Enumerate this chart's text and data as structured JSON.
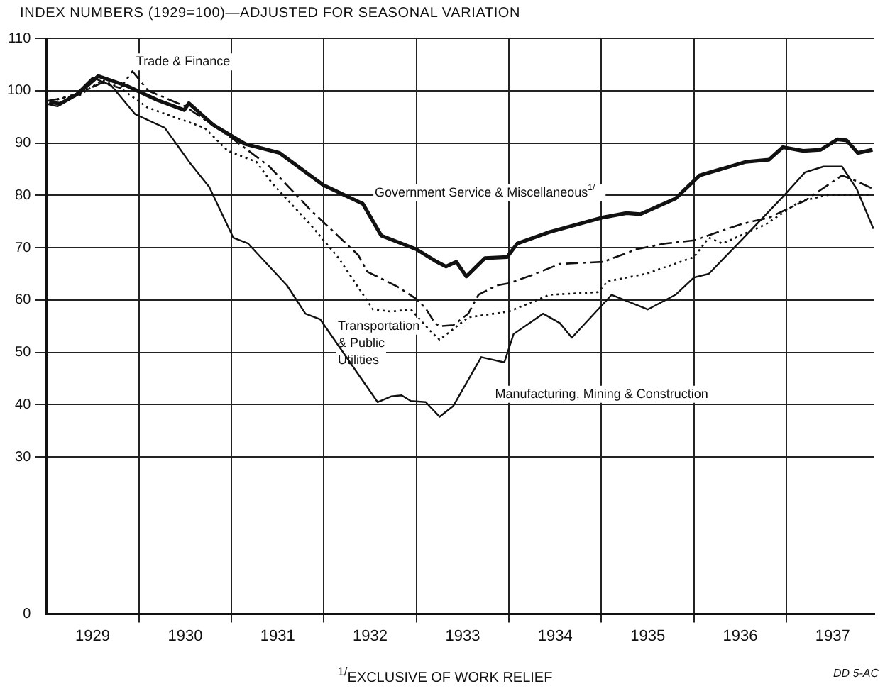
{
  "chart_data": {
    "type": "line",
    "title": "INDEX NUMBERS (1929=100)—ADJUSTED FOR SEASONAL VARIATION",
    "annotations": [
      "$^{1/}$EXCLUSIVE OF WORK RELIEF",
      "DD 5-AC"
    ],
    "xlim": [
      1929,
      1937.95
    ],
    "xticks": [
      {
        "value": 1929.5,
        "label": "1929"
      },
      {
        "value": 1930,
        "label": null
      },
      {
        "value": 1930.5,
        "label": "1930"
      },
      {
        "value": 1931,
        "label": null
      },
      {
        "value": 1931.5,
        "label": "1931"
      },
      {
        "value": 1932,
        "label": null
      },
      {
        "value": 1932.5,
        "label": "1932"
      },
      {
        "value": 1933,
        "label": null
      },
      {
        "value": 1933.5,
        "label": "1933"
      },
      {
        "value": 1934,
        "label": null
      },
      {
        "value": 1934.5,
        "label": "1934"
      },
      {
        "value": 1935,
        "label": null
      },
      {
        "value": 1935.5,
        "label": "1935"
      },
      {
        "value": 1936,
        "label": null
      },
      {
        "value": 1936.5,
        "label": "1936"
      },
      {
        "value": 1937,
        "label": null
      },
      {
        "value": 1937.5,
        "label": "1937"
      }
    ],
    "ylim": [
      0,
      110
    ],
    "yticks": [
      0,
      30,
      40,
      50,
      60,
      70,
      80,
      90,
      100,
      110
    ],
    "grid": true,
    "legend": false,
    "marker": "none",
    "series": [
      {
        "name": "Government Service & Miscellaneous$^{1/}$",
        "color": "#111111",
        "line_style": "solid",
        "x": [
          1929.03,
          1929.15,
          1929.35,
          1929.56,
          1929.87,
          1930.2,
          1930.49,
          1930.54,
          1930.8,
          1931.15,
          1931.52,
          1931.99,
          1932.42,
          1932.62,
          1933.0,
          1933.2,
          1933.32,
          1933.43,
          1933.54,
          1933.74,
          1933.98,
          1934.09,
          1934.44,
          1935.02,
          1935.27,
          1935.42,
          1935.8,
          1936.06,
          1936.56,
          1936.81,
          1936.96,
          1937.18,
          1937.37,
          1937.55,
          1937.65,
          1937.77,
          1937.93
        ],
        "values": [
          97.8,
          97.5,
          99.5,
          102.8,
          100.9,
          98.2,
          96.3,
          97.6,
          93.5,
          89.8,
          88.1,
          82.0,
          78.4,
          72.3,
          69.7,
          67.5,
          66.4,
          67.3,
          64.5,
          68.0,
          68.2,
          70.8,
          73.0,
          75.8,
          76.6,
          76.4,
          79.4,
          83.8,
          86.4,
          86.8,
          89.2,
          88.5,
          88.7,
          90.7,
          90.5,
          88.1,
          88.7
        ]
      },
      {
        "name": "Trade & Finance",
        "color": "#111111",
        "line_style": "dashed",
        "x": [
          1929.0,
          1929.15,
          1929.35,
          1929.6,
          1929.8,
          1929.93,
          1930.1,
          1930.5,
          1931.0,
          1931.41,
          1931.85,
          1932.37,
          1932.47,
          1932.79,
          1933.0,
          1933.1,
          1933.2,
          1933.25,
          1933.4,
          1933.56,
          1933.67,
          1933.87,
          1934.0,
          1934.24,
          1934.55,
          1935.02,
          1935.38,
          1935.69,
          1936.0,
          1936.51,
          1936.82,
          1937.2,
          1937.6,
          1937.76,
          1937.94
        ],
        "values": [
          98.0,
          98.5,
          99.5,
          101.5,
          100.5,
          103.7,
          100.0,
          97.0,
          91.0,
          85.5,
          77.3,
          68.6,
          65.4,
          62.6,
          60.2,
          58.4,
          55.6,
          55.0,
          55.2,
          57.4,
          61.0,
          62.8,
          63.2,
          64.7,
          66.9,
          67.3,
          69.7,
          70.8,
          71.4,
          74.5,
          75.8,
          79.0,
          83.8,
          82.7,
          81.2
        ]
      },
      {
        "name": "Transportation & Public Utilities",
        "color": "#111111",
        "line_style": "dotted",
        "x": [
          1929.0,
          1929.15,
          1929.35,
          1929.6,
          1929.8,
          1930.09,
          1930.71,
          1930.96,
          1931.27,
          1931.44,
          1931.85,
          1932.16,
          1932.53,
          1932.73,
          1932.94,
          1933.15,
          1933.25,
          1933.56,
          1934.0,
          1934.44,
          1934.96,
          1935.07,
          1935.48,
          1936.0,
          1936.16,
          1936.31,
          1936.78,
          1937.14,
          1937.45,
          1937.92
        ],
        "values": [
          97.5,
          98.5,
          99.0,
          102.0,
          100.5,
          96.8,
          92.9,
          88.5,
          86.4,
          82.3,
          74.5,
          68.0,
          58.2,
          57.8,
          58.2,
          54.1,
          52.4,
          56.7,
          57.8,
          61.0,
          61.5,
          63.6,
          65.0,
          68.2,
          71.9,
          70.8,
          74.5,
          78.8,
          80.1,
          80.1
        ]
      },
      {
        "name": "Manufacturing, Mining & Construction",
        "color": "#111111",
        "line_style": "solid",
        "x": [
          1929.0,
          1929.12,
          1929.3,
          1929.5,
          1929.7,
          1929.96,
          1930.28,
          1930.56,
          1930.76,
          1931.02,
          1931.18,
          1931.6,
          1931.8,
          1931.96,
          1932.58,
          1932.73,
          1932.84,
          1932.94,
          1933.1,
          1933.25,
          1933.4,
          1933.7,
          1933.95,
          1934.05,
          1934.37,
          1934.55,
          1934.68,
          1935.11,
          1935.5,
          1935.8,
          1936.0,
          1936.16,
          1936.51,
          1936.98,
          1937.2,
          1937.4,
          1937.6,
          1937.76,
          1937.94
        ],
        "values": [
          97.5,
          97.0,
          99.0,
          102.5,
          101.0,
          95.5,
          92.9,
          86.0,
          81.6,
          71.9,
          70.8,
          62.8,
          57.4,
          56.3,
          40.5,
          41.6,
          41.8,
          40.7,
          40.5,
          37.7,
          39.8,
          49.1,
          48.1,
          53.5,
          57.4,
          55.6,
          52.8,
          61.0,
          58.2,
          61.0,
          64.3,
          65.0,
          71.4,
          80.1,
          84.4,
          85.5,
          85.5,
          81.2,
          73.6
        ]
      }
    ]
  }
}
